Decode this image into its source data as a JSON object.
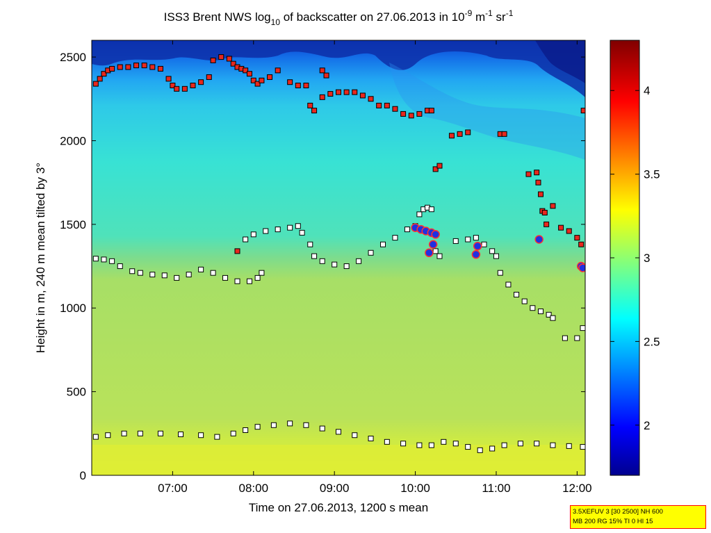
{
  "chart_data": {
    "type": "heatmap",
    "title_parts": {
      "prefix": "ISS3 Brent NWS log",
      "sub": "10",
      "mid": " of backscatter on 27.06.2013 in 10",
      "sup1": "-9",
      "mid2": " m",
      "sup2": "-1",
      "mid3": " sr",
      "sup3": "-1"
    },
    "xlabel": "Time on 27.06.2013, 1200 s mean",
    "ylabel": "Height in m, 240 m mean tilted by 3°",
    "x_ticks": [
      "07:00",
      "08:00",
      "09:00",
      "10:00",
      "11:00",
      "12:00"
    ],
    "x_tick_hours": [
      7,
      8,
      9,
      10,
      11,
      12
    ],
    "xlim_hours": [
      6.0,
      12.1
    ],
    "y_ticks": [
      0,
      500,
      1000,
      1500,
      2000,
      2500
    ],
    "ylim": [
      0,
      2600
    ],
    "colorbar": {
      "ticks": [
        2,
        2.5,
        3,
        3.5,
        4
      ],
      "range": [
        1.7,
        4.3
      ],
      "colormap": "jet"
    },
    "backscatter_field": {
      "description_levels": [
        {
          "height_range": [
            0,
            300
          ],
          "value": 3.3
        },
        {
          "height_range": [
            300,
            1300
          ],
          "value": 3.1
        },
        {
          "height_range": [
            1300,
            2300
          ],
          "value": 2.7
        },
        {
          "height_range": [
            2300,
            2600
          ],
          "value": 2.2
        }
      ]
    },
    "series": [
      {
        "name": "red squares",
        "marker": "square",
        "color": "#e8281e",
        "points": [
          [
            6.05,
            2340
          ],
          [
            6.1,
            2370
          ],
          [
            6.15,
            2400
          ],
          [
            6.2,
            2420
          ],
          [
            6.25,
            2430
          ],
          [
            6.35,
            2440
          ],
          [
            6.45,
            2440
          ],
          [
            6.55,
            2450
          ],
          [
            6.65,
            2450
          ],
          [
            6.75,
            2440
          ],
          [
            6.85,
            2430
          ],
          [
            6.95,
            2370
          ],
          [
            7.0,
            2330
          ],
          [
            7.05,
            2310
          ],
          [
            7.15,
            2310
          ],
          [
            7.25,
            2330
          ],
          [
            7.35,
            2350
          ],
          [
            7.45,
            2380
          ],
          [
            7.5,
            2480
          ],
          [
            7.6,
            2500
          ],
          [
            7.7,
            2490
          ],
          [
            7.75,
            2460
          ],
          [
            7.8,
            2440
          ],
          [
            7.85,
            2430
          ],
          [
            7.9,
            2420
          ],
          [
            7.95,
            2400
          ],
          [
            8.0,
            2360
          ],
          [
            8.05,
            2340
          ],
          [
            8.1,
            2360
          ],
          [
            8.2,
            2380
          ],
          [
            8.3,
            2420
          ],
          [
            8.45,
            2350
          ],
          [
            8.55,
            2330
          ],
          [
            8.65,
            2330
          ],
          [
            8.85,
            2420
          ],
          [
            8.9,
            2390
          ],
          [
            8.7,
            2210
          ],
          [
            8.75,
            2180
          ],
          [
            8.85,
            2260
          ],
          [
            8.95,
            2280
          ],
          [
            9.05,
            2290
          ],
          [
            9.15,
            2290
          ],
          [
            9.25,
            2290
          ],
          [
            9.35,
            2270
          ],
          [
            9.45,
            2250
          ],
          [
            9.55,
            2210
          ],
          [
            9.65,
            2210
          ],
          [
            9.75,
            2190
          ],
          [
            9.85,
            2160
          ],
          [
            9.95,
            2150
          ],
          [
            10.05,
            2160
          ],
          [
            10.15,
            2180
          ],
          [
            10.2,
            2180
          ],
          [
            10.25,
            1830
          ],
          [
            10.3,
            1850
          ],
          [
            10.45,
            2030
          ],
          [
            10.55,
            2040
          ],
          [
            10.65,
            2050
          ],
          [
            11.05,
            2040
          ],
          [
            11.1,
            2040
          ],
          [
            11.4,
            1800
          ],
          [
            11.5,
            1810
          ],
          [
            11.52,
            1750
          ],
          [
            11.55,
            1680
          ],
          [
            11.57,
            1580
          ],
          [
            11.6,
            1570
          ],
          [
            11.62,
            1500
          ],
          [
            11.7,
            1610
          ],
          [
            11.8,
            1480
          ],
          [
            11.9,
            1460
          ],
          [
            12.0,
            1420
          ],
          [
            12.05,
            1380
          ],
          [
            12.08,
            2180
          ],
          [
            7.8,
            1340
          ]
        ]
      },
      {
        "name": "white squares",
        "marker": "square",
        "color": "#ffffff",
        "points": [
          [
            6.05,
            1295
          ],
          [
            6.15,
            1290
          ],
          [
            6.25,
            1280
          ],
          [
            6.35,
            1250
          ],
          [
            6.5,
            1220
          ],
          [
            6.6,
            1210
          ],
          [
            6.75,
            1200
          ],
          [
            6.9,
            1195
          ],
          [
            7.05,
            1180
          ],
          [
            7.2,
            1200
          ],
          [
            7.35,
            1230
          ],
          [
            7.5,
            1210
          ],
          [
            7.65,
            1180
          ],
          [
            7.8,
            1160
          ],
          [
            7.95,
            1160
          ],
          [
            8.05,
            1180
          ],
          [
            8.1,
            1210
          ],
          [
            7.9,
            1410
          ],
          [
            8.0,
            1440
          ],
          [
            8.15,
            1460
          ],
          [
            8.3,
            1470
          ],
          [
            8.45,
            1480
          ],
          [
            8.55,
            1490
          ],
          [
            8.6,
            1450
          ],
          [
            8.7,
            1380
          ],
          [
            8.75,
            1310
          ],
          [
            8.85,
            1280
          ],
          [
            9.0,
            1260
          ],
          [
            9.15,
            1250
          ],
          [
            9.3,
            1280
          ],
          [
            9.45,
            1330
          ],
          [
            9.6,
            1380
          ],
          [
            9.75,
            1420
          ],
          [
            9.9,
            1470
          ],
          [
            10.0,
            1490
          ],
          [
            10.05,
            1560
          ],
          [
            10.1,
            1590
          ],
          [
            10.15,
            1600
          ],
          [
            10.2,
            1590
          ],
          [
            10.25,
            1340
          ],
          [
            10.3,
            1310
          ],
          [
            10.5,
            1400
          ],
          [
            10.65,
            1410
          ],
          [
            10.75,
            1420
          ],
          [
            10.85,
            1380
          ],
          [
            10.95,
            1340
          ],
          [
            11.0,
            1310
          ],
          [
            11.05,
            1210
          ],
          [
            11.15,
            1140
          ],
          [
            11.25,
            1080
          ],
          [
            11.35,
            1040
          ],
          [
            11.45,
            1000
          ],
          [
            11.55,
            980
          ],
          [
            11.65,
            960
          ],
          [
            11.7,
            940
          ],
          [
            11.85,
            820
          ],
          [
            12.0,
            820
          ],
          [
            12.07,
            880
          ],
          [
            6.05,
            230
          ],
          [
            6.2,
            240
          ],
          [
            6.4,
            250
          ],
          [
            6.6,
            250
          ],
          [
            6.85,
            250
          ],
          [
            7.1,
            245
          ],
          [
            7.35,
            240
          ],
          [
            7.55,
            230
          ],
          [
            7.75,
            250
          ],
          [
            7.9,
            270
          ],
          [
            8.05,
            290
          ],
          [
            8.25,
            300
          ],
          [
            8.45,
            310
          ],
          [
            8.65,
            300
          ],
          [
            8.85,
            280
          ],
          [
            9.05,
            260
          ],
          [
            9.25,
            240
          ],
          [
            9.45,
            220
          ],
          [
            9.65,
            200
          ],
          [
            9.85,
            190
          ],
          [
            10.05,
            180
          ],
          [
            10.2,
            180
          ],
          [
            10.35,
            200
          ],
          [
            10.5,
            190
          ],
          [
            10.65,
            170
          ],
          [
            10.8,
            150
          ],
          [
            10.95,
            160
          ],
          [
            11.1,
            180
          ],
          [
            11.3,
            190
          ],
          [
            11.5,
            190
          ],
          [
            11.7,
            180
          ],
          [
            11.9,
            175
          ],
          [
            12.07,
            170
          ]
        ]
      },
      {
        "name": "blue circles",
        "marker": "circle",
        "color": "#2030e0",
        "points": [
          [
            10.0,
            1480
          ],
          [
            10.07,
            1470
          ],
          [
            10.13,
            1460
          ],
          [
            10.2,
            1450
          ],
          [
            10.25,
            1440
          ],
          [
            10.17,
            1330
          ],
          [
            10.22,
            1380
          ],
          [
            10.75,
            1320
          ],
          [
            10.77,
            1370
          ],
          [
            11.53,
            1410
          ],
          [
            12.05,
            1250
          ],
          [
            12.07,
            1240
          ]
        ]
      }
    ]
  },
  "info_box": {
    "line1": "3.5XEFUV 3 [30 2500] NH 600",
    "line2": "MB 200 RG 15% TI 0 HI 15"
  }
}
